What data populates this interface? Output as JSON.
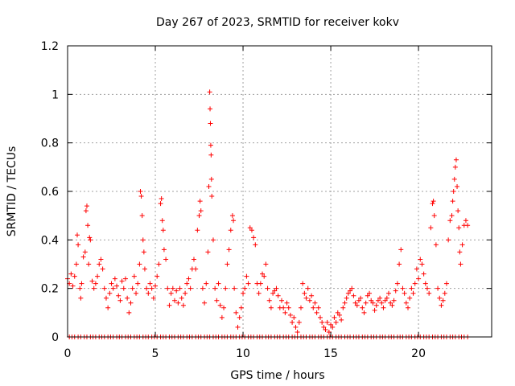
{
  "chart_data": {
    "type": "scatter",
    "title": "Day 267 of 2023, SRMTID for receiver kokv",
    "xlabel": "GPS time / hours",
    "ylabel": "SRMTID / TECUs",
    "xlim": [
      0,
      24.17
    ],
    "ylim": [
      0,
      1.2
    ],
    "xticks": [
      0,
      5,
      10,
      15,
      20
    ],
    "xtick_labels": [
      "0",
      "5",
      "10",
      "15",
      "20"
    ],
    "yticks": [
      0,
      0.2,
      0.4,
      0.6,
      0.8,
      1.0,
      1.2
    ],
    "ytick_labels": [
      "0",
      "0.2",
      "0.4",
      "0.6",
      "0.8",
      "1",
      "1.2"
    ],
    "grid": true,
    "marker": "+",
    "color": "#ff0000",
    "series": [
      {
        "name": "SRMTID",
        "points": [
          [
            0.0,
            0.24
          ],
          [
            0.1,
            0.22
          ],
          [
            0.2,
            0.26
          ],
          [
            0.3,
            0.21
          ],
          [
            0.4,
            0.25
          ],
          [
            0.5,
            0.3
          ],
          [
            0.55,
            0.42
          ],
          [
            0.6,
            0.38
          ],
          [
            0.7,
            0.2
          ],
          [
            0.75,
            0.16
          ],
          [
            0.8,
            0.22
          ],
          [
            0.9,
            0.33
          ],
          [
            1.0,
            0.35
          ],
          [
            1.05,
            0.52
          ],
          [
            1.1,
            0.54
          ],
          [
            1.15,
            0.46
          ],
          [
            1.2,
            0.3
          ],
          [
            1.25,
            0.41
          ],
          [
            1.3,
            0.4
          ],
          [
            1.4,
            0.23
          ],
          [
            1.5,
            0.2
          ],
          [
            1.6,
            0.22
          ],
          [
            1.7,
            0.25
          ],
          [
            1.8,
            0.3
          ],
          [
            1.9,
            0.32
          ],
          [
            2.0,
            0.28
          ],
          [
            2.1,
            0.2
          ],
          [
            2.2,
            0.16
          ],
          [
            2.3,
            0.12
          ],
          [
            2.4,
            0.18
          ],
          [
            2.5,
            0.22
          ],
          [
            2.6,
            0.2
          ],
          [
            2.7,
            0.24
          ],
          [
            2.8,
            0.21
          ],
          [
            2.9,
            0.17
          ],
          [
            3.0,
            0.15
          ],
          [
            3.1,
            0.23
          ],
          [
            3.2,
            0.2
          ],
          [
            3.3,
            0.24
          ],
          [
            3.4,
            0.16
          ],
          [
            3.5,
            0.1
          ],
          [
            3.6,
            0.14
          ],
          [
            3.7,
            0.2
          ],
          [
            3.8,
            0.25
          ],
          [
            3.9,
            0.18
          ],
          [
            4.0,
            0.22
          ],
          [
            4.1,
            0.3
          ],
          [
            4.15,
            0.6
          ],
          [
            4.2,
            0.58
          ],
          [
            4.25,
            0.5
          ],
          [
            4.3,
            0.4
          ],
          [
            4.35,
            0.35
          ],
          [
            4.4,
            0.28
          ],
          [
            4.5,
            0.2
          ],
          [
            4.6,
            0.18
          ],
          [
            4.7,
            0.22
          ],
          [
            4.8,
            0.2
          ],
          [
            4.9,
            0.16
          ],
          [
            5.0,
            0.21
          ],
          [
            5.1,
            0.25
          ],
          [
            5.2,
            0.3
          ],
          [
            5.3,
            0.55
          ],
          [
            5.35,
            0.57
          ],
          [
            5.4,
            0.48
          ],
          [
            5.45,
            0.44
          ],
          [
            5.5,
            0.36
          ],
          [
            5.6,
            0.32
          ],
          [
            5.7,
            0.2
          ],
          [
            5.8,
            0.13
          ],
          [
            5.9,
            0.18
          ],
          [
            6.0,
            0.2
          ],
          [
            6.1,
            0.15
          ],
          [
            6.2,
            0.19
          ],
          [
            6.3,
            0.14
          ],
          [
            6.4,
            0.2
          ],
          [
            6.5,
            0.16
          ],
          [
            6.6,
            0.13
          ],
          [
            6.7,
            0.18
          ],
          [
            6.8,
            0.22
          ],
          [
            6.9,
            0.24
          ],
          [
            7.0,
            0.2
          ],
          [
            7.1,
            0.28
          ],
          [
            7.2,
            0.32
          ],
          [
            7.3,
            0.28
          ],
          [
            7.4,
            0.44
          ],
          [
            7.5,
            0.5
          ],
          [
            7.55,
            0.56
          ],
          [
            7.6,
            0.52
          ],
          [
            7.7,
            0.2
          ],
          [
            7.8,
            0.14
          ],
          [
            7.9,
            0.22
          ],
          [
            8.0,
            0.35
          ],
          [
            8.05,
            0.62
          ],
          [
            8.1,
            1.01
          ],
          [
            8.12,
            0.94
          ],
          [
            8.14,
            0.88
          ],
          [
            8.16,
            0.79
          ],
          [
            8.18,
            0.75
          ],
          [
            8.2,
            0.65
          ],
          [
            8.22,
            0.58
          ],
          [
            8.3,
            0.4
          ],
          [
            8.4,
            0.2
          ],
          [
            8.5,
            0.15
          ],
          [
            8.6,
            0.22
          ],
          [
            8.7,
            0.13
          ],
          [
            8.8,
            0.08
          ],
          [
            8.9,
            0.12
          ],
          [
            9.0,
            0.2
          ],
          [
            9.1,
            0.3
          ],
          [
            9.2,
            0.36
          ],
          [
            9.3,
            0.44
          ],
          [
            9.4,
            0.5
          ],
          [
            9.45,
            0.48
          ],
          [
            9.5,
            0.2
          ],
          [
            9.6,
            0.1
          ],
          [
            9.7,
            0.04
          ],
          [
            9.8,
            0.08
          ],
          [
            9.9,
            0.12
          ],
          [
            10.0,
            0.18
          ],
          [
            10.1,
            0.2
          ],
          [
            10.2,
            0.25
          ],
          [
            10.3,
            0.22
          ],
          [
            10.4,
            0.45
          ],
          [
            10.5,
            0.44
          ],
          [
            10.6,
            0.41
          ],
          [
            10.7,
            0.38
          ],
          [
            10.8,
            0.22
          ],
          [
            10.9,
            0.18
          ],
          [
            11.0,
            0.22
          ],
          [
            11.1,
            0.26
          ],
          [
            11.2,
            0.25
          ],
          [
            11.3,
            0.3
          ],
          [
            11.4,
            0.2
          ],
          [
            11.5,
            0.15
          ],
          [
            11.6,
            0.12
          ],
          [
            11.7,
            0.18
          ],
          [
            11.8,
            0.19
          ],
          [
            11.9,
            0.2
          ],
          [
            12.0,
            0.17
          ],
          [
            12.1,
            0.12
          ],
          [
            12.2,
            0.15
          ],
          [
            12.3,
            0.12
          ],
          [
            12.4,
            0.1
          ],
          [
            12.5,
            0.14
          ],
          [
            12.6,
            0.12
          ],
          [
            12.7,
            0.09
          ],
          [
            12.8,
            0.06
          ],
          [
            12.9,
            0.08
          ],
          [
            13.0,
            0.04
          ],
          [
            13.1,
            0.02
          ],
          [
            13.2,
            0.06
          ],
          [
            13.3,
            0.12
          ],
          [
            13.4,
            0.22
          ],
          [
            13.5,
            0.18
          ],
          [
            13.6,
            0.16
          ],
          [
            13.7,
            0.2
          ],
          [
            13.8,
            0.15
          ],
          [
            13.9,
            0.17
          ],
          [
            14.0,
            0.12
          ],
          [
            14.1,
            0.14
          ],
          [
            14.2,
            0.1
          ],
          [
            14.3,
            0.12
          ],
          [
            14.4,
            0.08
          ],
          [
            14.5,
            0.06
          ],
          [
            14.6,
            0.04
          ],
          [
            14.7,
            0.03
          ],
          [
            14.8,
            0.06
          ],
          [
            14.9,
            0.02
          ],
          [
            15.0,
            0.05
          ],
          [
            15.1,
            0.04
          ],
          [
            15.2,
            0.08
          ],
          [
            15.3,
            0.06
          ],
          [
            15.4,
            0.1
          ],
          [
            15.5,
            0.09
          ],
          [
            15.6,
            0.07
          ],
          [
            15.7,
            0.12
          ],
          [
            15.8,
            0.14
          ],
          [
            15.9,
            0.16
          ],
          [
            16.0,
            0.18
          ],
          [
            16.1,
            0.19
          ],
          [
            16.2,
            0.2
          ],
          [
            16.3,
            0.17
          ],
          [
            16.4,
            0.14
          ],
          [
            16.5,
            0.13
          ],
          [
            16.6,
            0.15
          ],
          [
            16.7,
            0.16
          ],
          [
            16.8,
            0.12
          ],
          [
            16.9,
            0.1
          ],
          [
            17.0,
            0.14
          ],
          [
            17.1,
            0.17
          ],
          [
            17.2,
            0.18
          ],
          [
            17.3,
            0.15
          ],
          [
            17.4,
            0.14
          ],
          [
            17.5,
            0.11
          ],
          [
            17.6,
            0.13
          ],
          [
            17.7,
            0.15
          ],
          [
            17.8,
            0.16
          ],
          [
            17.9,
            0.14
          ],
          [
            18.0,
            0.12
          ],
          [
            18.1,
            0.15
          ],
          [
            18.2,
            0.16
          ],
          [
            18.3,
            0.18
          ],
          [
            18.4,
            0.14
          ],
          [
            18.5,
            0.13
          ],
          [
            18.6,
            0.15
          ],
          [
            18.7,
            0.19
          ],
          [
            18.8,
            0.22
          ],
          [
            18.9,
            0.3
          ],
          [
            19.0,
            0.36
          ],
          [
            19.1,
            0.2
          ],
          [
            19.2,
            0.18
          ],
          [
            19.3,
            0.14
          ],
          [
            19.4,
            0.12
          ],
          [
            19.5,
            0.16
          ],
          [
            19.6,
            0.2
          ],
          [
            19.7,
            0.18
          ],
          [
            19.8,
            0.22
          ],
          [
            19.9,
            0.28
          ],
          [
            20.0,
            0.24
          ],
          [
            20.1,
            0.32
          ],
          [
            20.2,
            0.3
          ],
          [
            20.3,
            0.26
          ],
          [
            20.4,
            0.22
          ],
          [
            20.5,
            0.2
          ],
          [
            20.6,
            0.18
          ],
          [
            20.7,
            0.45
          ],
          [
            20.8,
            0.55
          ],
          [
            20.85,
            0.56
          ],
          [
            20.9,
            0.5
          ],
          [
            21.0,
            0.38
          ],
          [
            21.1,
            0.2
          ],
          [
            21.2,
            0.16
          ],
          [
            21.3,
            0.13
          ],
          [
            21.4,
            0.15
          ],
          [
            21.5,
            0.18
          ],
          [
            21.6,
            0.22
          ],
          [
            21.7,
            0.4
          ],
          [
            21.8,
            0.48
          ],
          [
            21.9,
            0.5
          ],
          [
            21.95,
            0.56
          ],
          [
            22.0,
            0.6
          ],
          [
            22.05,
            0.65
          ],
          [
            22.1,
            0.7
          ],
          [
            22.15,
            0.73
          ],
          [
            22.2,
            0.62
          ],
          [
            22.25,
            0.52
          ],
          [
            22.3,
            0.45
          ],
          [
            22.35,
            0.35
          ],
          [
            22.4,
            0.3
          ],
          [
            22.5,
            0.38
          ],
          [
            22.6,
            0.46
          ],
          [
            22.7,
            0.48
          ],
          [
            22.8,
            0.46
          ]
        ]
      }
    ],
    "zero_points_x": [
      0.1,
      0.25,
      0.4,
      0.6,
      0.75,
      0.95,
      1.1,
      1.3,
      1.45,
      1.6,
      1.8,
      1.95,
      2.1,
      2.3,
      2.45,
      2.6,
      2.8,
      2.95,
      3.1,
      3.3,
      3.45,
      3.6,
      3.8,
      3.95,
      4.1,
      4.3,
      4.45,
      4.6,
      4.8,
      4.95,
      5.1,
      5.3,
      5.45,
      5.6,
      5.8,
      5.95,
      6.1,
      6.3,
      6.45,
      6.6,
      6.8,
      6.95,
      7.1,
      7.3,
      7.45,
      7.6,
      7.8,
      7.95,
      8.1,
      8.3,
      8.45,
      8.6,
      8.8,
      8.95,
      9.1,
      9.3,
      9.45,
      9.6,
      9.8,
      9.95,
      10.1,
      10.3,
      10.45,
      10.6,
      10.8,
      10.95,
      11.1,
      11.3,
      11.45,
      11.6,
      11.8,
      11.95,
      12.1,
      12.3,
      12.45,
      12.6,
      12.8,
      12.95,
      13.1,
      13.3,
      13.45,
      13.6,
      13.8,
      13.95,
      14.1,
      14.3,
      14.45,
      14.6,
      14.8,
      14.95,
      15.1,
      15.3,
      15.45,
      15.6,
      15.8,
      15.95,
      16.1,
      16.3,
      16.45,
      16.6,
      16.8,
      16.95,
      17.1,
      17.3,
      17.45,
      17.6,
      17.8,
      17.95,
      18.1,
      18.3,
      18.45,
      18.6,
      18.8,
      18.95,
      19.1,
      19.3,
      19.45,
      19.6,
      19.8,
      19.95,
      20.1,
      20.3,
      20.45,
      20.6,
      20.8,
      20.95,
      21.1,
      21.3,
      21.45,
      21.6,
      21.8,
      21.95,
      22.1,
      22.3,
      22.45,
      22.6,
      22.8
    ]
  }
}
